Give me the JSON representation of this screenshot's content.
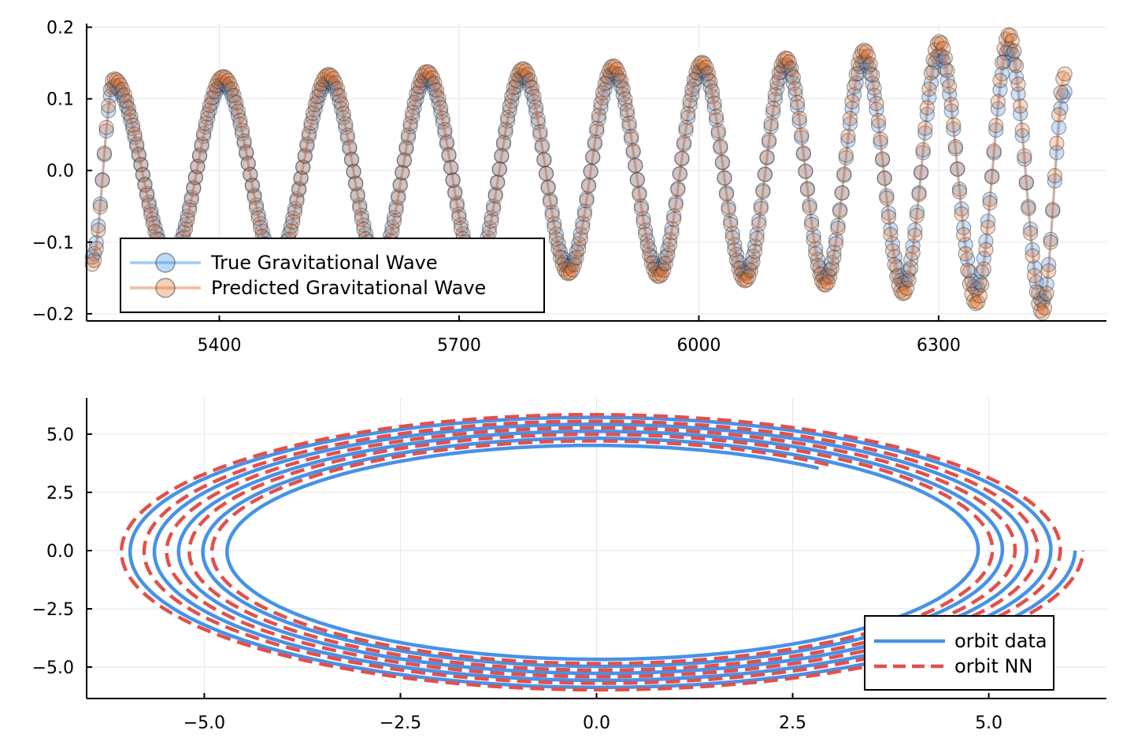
{
  "colors": {
    "blue": "#4692e8",
    "red": "#e2504a",
    "orange": "#e0773a",
    "dark_edge": "#333333",
    "grid": "#e6e6e6"
  },
  "chart_data": [
    {
      "type": "scatter",
      "title": "",
      "xlabel": "",
      "ylabel": "",
      "xlim": [
        5234,
        6510
      ],
      "ylim": [
        -0.21,
        0.205
      ],
      "xticks": [
        5400,
        5700,
        6000,
        6300
      ],
      "xtick_labels": [
        "5400",
        "5700",
        "6000",
        "6300"
      ],
      "yticks": [
        -0.2,
        -0.1,
        0.0,
        0.1,
        0.2
      ],
      "ytick_labels": [
        "−0.2",
        "−0.1",
        "0.0",
        "0.1",
        "0.2"
      ],
      "grid": true,
      "legend_position": "bottom-left",
      "series": [
        {
          "name": "True Gravitational Wave",
          "color": "#4692e8",
          "marker": "circle",
          "peaks": [
            {
              "t": 5268,
              "h": 0.118
            },
            {
              "t": 5339,
              "h": -0.12
            },
            {
              "t": 5405,
              "h": 0.121
            },
            {
              "t": 5471,
              "h": -0.123
            },
            {
              "t": 5537,
              "h": 0.124
            },
            {
              "t": 5599,
              "h": -0.126
            },
            {
              "t": 5660,
              "h": 0.128
            },
            {
              "t": 5721,
              "h": -0.13
            },
            {
              "t": 5780,
              "h": 0.132
            },
            {
              "t": 5837,
              "h": -0.134
            },
            {
              "t": 5893,
              "h": 0.136
            },
            {
              "t": 5950,
              "h": -0.138
            },
            {
              "t": 6004,
              "h": 0.141
            },
            {
              "t": 6058,
              "h": -0.144
            },
            {
              "t": 6109,
              "h": 0.147
            },
            {
              "t": 6158,
              "h": -0.15
            },
            {
              "t": 6207,
              "h": 0.153
            },
            {
              "t": 6256,
              "h": -0.157
            },
            {
              "t": 6301,
              "h": 0.162
            },
            {
              "t": 6347,
              "h": -0.166
            },
            {
              "t": 6388,
              "h": 0.17
            },
            {
              "t": 6430,
              "h": -0.183
            }
          ],
          "start": {
            "t": 5241,
            "h": -0.121
          },
          "end": {
            "t": 6458,
            "h": 0.11
          }
        },
        {
          "name": "Predicted Gravitational Wave",
          "color": "#e0773a",
          "marker": "circle",
          "peaks": [
            {
              "t": 5268,
              "h": 0.128
            },
            {
              "t": 5339,
              "h": -0.13
            },
            {
              "t": 5405,
              "h": 0.131
            },
            {
              "t": 5471,
              "h": -0.133
            },
            {
              "t": 5537,
              "h": 0.134
            },
            {
              "t": 5599,
              "h": -0.136
            },
            {
              "t": 5660,
              "h": 0.138
            },
            {
              "t": 5721,
              "h": -0.14
            },
            {
              "t": 5780,
              "h": 0.142
            },
            {
              "t": 5837,
              "h": -0.144
            },
            {
              "t": 5893,
              "h": 0.146
            },
            {
              "t": 5950,
              "h": -0.148
            },
            {
              "t": 6004,
              "h": 0.151
            },
            {
              "t": 6058,
              "h": -0.154
            },
            {
              "t": 6109,
              "h": 0.157
            },
            {
              "t": 6158,
              "h": -0.16
            },
            {
              "t": 6207,
              "h": 0.168
            },
            {
              "t": 6256,
              "h": -0.172
            },
            {
              "t": 6301,
              "h": 0.18
            },
            {
              "t": 6347,
              "h": -0.186
            },
            {
              "t": 6388,
              "h": 0.19
            },
            {
              "t": 6430,
              "h": -0.199
            }
          ],
          "start": {
            "t": 5241,
            "h": -0.131
          },
          "end": {
            "t": 6458,
            "h": 0.135
          }
        }
      ]
    },
    {
      "type": "line",
      "title": "",
      "xlabel": "",
      "ylabel": "",
      "xlim": [
        -6.5,
        6.5
      ],
      "ylim": [
        -6.35,
        6.55
      ],
      "xticks": [
        -5.0,
        -2.5,
        0.0,
        2.5,
        5.0
      ],
      "xtick_labels": [
        "−5.0",
        "−2.5",
        "0.0",
        "2.5",
        "5.0"
      ],
      "yticks": [
        -5.0,
        -2.5,
        0.0,
        2.5,
        5.0
      ],
      "ytick_labels": [
        "−5.0",
        "−2.5",
        "0.0",
        "2.5",
        "5.0"
      ],
      "grid": true,
      "legend_position": "bottom-right",
      "series": [
        {
          "name": "orbit data",
          "color": "#4692e8",
          "style": "solid",
          "r_end": 6.1,
          "r_start": 4.6,
          "angle_end_deg": 0,
          "angle_start_deg": -1748
        },
        {
          "name": "orbit NN",
          "color": "#e2504a",
          "style": "dashed",
          "r_end": 6.2,
          "r_start": 4.8,
          "angle_end_deg": 0,
          "angle_start_deg": -1748
        }
      ]
    }
  ]
}
